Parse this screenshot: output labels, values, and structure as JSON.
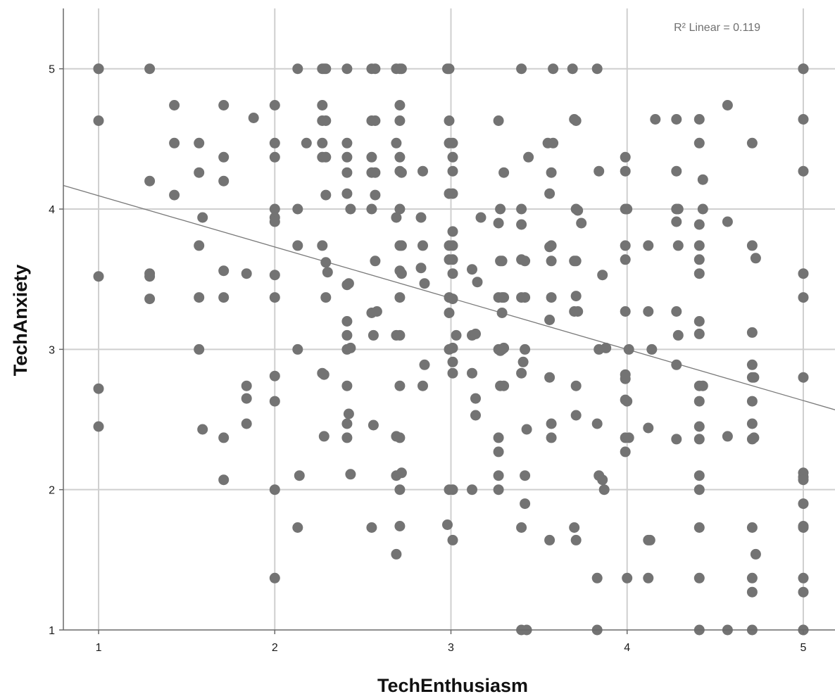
{
  "chart_data": {
    "type": "scatter",
    "xlabel": "TechEnthusiasm",
    "ylabel": "TechAnxiety",
    "xlim": [
      0.8,
      5.18
    ],
    "ylim": [
      1,
      5.43
    ],
    "xticks": [
      1,
      2,
      3,
      4,
      5
    ],
    "yticks": [
      1,
      2,
      3,
      4,
      5
    ],
    "grid": true,
    "annotation": "R² Linear = 0.119",
    "fit_line": {
      "intercept": 4.46,
      "slope": -0.365
    },
    "colors": {
      "points": "#737373",
      "grid": "#cfcfcf",
      "fit_line": "#7a7a7a",
      "axis": "#6a6a6a"
    },
    "points": [
      [
        1,
        5
      ],
      [
        1,
        5
      ],
      [
        1,
        4.63
      ],
      [
        1,
        3.52
      ],
      [
        1,
        2.72
      ],
      [
        1,
        2.45
      ],
      [
        1.29,
        5
      ],
      [
        1.29,
        4.2
      ],
      [
        1.29,
        3.54
      ],
      [
        1.29,
        3.52
      ],
      [
        1.29,
        3.36
      ],
      [
        1.43,
        4.74
      ],
      [
        1.43,
        4.47
      ],
      [
        1.43,
        4.1
      ],
      [
        1.57,
        4.47
      ],
      [
        1.57,
        4.26
      ],
      [
        1.57,
        3.74
      ],
      [
        1.57,
        3.37
      ],
      [
        1.57,
        3
      ],
      [
        1.59,
        3.94
      ],
      [
        1.59,
        2.43
      ],
      [
        1.71,
        4.74
      ],
      [
        1.71,
        4.37
      ],
      [
        1.71,
        4.2
      ],
      [
        1.71,
        3.56
      ],
      [
        1.71,
        3.37
      ],
      [
        1.71,
        2.37
      ],
      [
        1.71,
        2.07
      ],
      [
        1.84,
        3.54
      ],
      [
        1.84,
        2.74
      ],
      [
        1.84,
        2.65
      ],
      [
        1.84,
        2.47
      ],
      [
        1.88,
        4.65
      ],
      [
        2,
        4.74
      ],
      [
        2,
        4.47
      ],
      [
        2,
        4.37
      ],
      [
        2,
        4
      ],
      [
        2,
        3.94
      ],
      [
        2,
        3.91
      ],
      [
        2,
        3.53
      ],
      [
        2,
        3.37
      ],
      [
        2,
        2.81
      ],
      [
        2,
        2.63
      ],
      [
        2,
        2
      ],
      [
        2,
        1.37
      ],
      [
        2.13,
        5
      ],
      [
        2.13,
        4
      ],
      [
        2.13,
        3.74
      ],
      [
        2.13,
        3
      ],
      [
        2.14,
        2.1
      ],
      [
        2.13,
        1.73
      ],
      [
        2.18,
        4.47
      ],
      [
        2.27,
        5
      ],
      [
        2.28,
        5
      ],
      [
        2.29,
        5
      ],
      [
        2.27,
        4.74
      ],
      [
        2.27,
        4.63
      ],
      [
        2.29,
        4.63
      ],
      [
        2.27,
        4.47
      ],
      [
        2.27,
        4.37
      ],
      [
        2.29,
        4.37
      ],
      [
        2.29,
        4.1
      ],
      [
        2.27,
        3.74
      ],
      [
        2.29,
        3.62
      ],
      [
        2.3,
        3.55
      ],
      [
        2.29,
        3.37
      ],
      [
        2.27,
        2.83
      ],
      [
        2.28,
        2.82
      ],
      [
        2.28,
        2.38
      ],
      [
        2.41,
        5
      ],
      [
        2.41,
        4.47
      ],
      [
        2.41,
        4.37
      ],
      [
        2.41,
        4.26
      ],
      [
        2.41,
        4.11
      ],
      [
        2.43,
        4
      ],
      [
        2.42,
        3.47
      ],
      [
        2.41,
        3.46
      ],
      [
        2.41,
        3.2
      ],
      [
        2.41,
        3.1
      ],
      [
        2.41,
        3
      ],
      [
        2.43,
        3.01
      ],
      [
        2.41,
        2.74
      ],
      [
        2.42,
        2.54
      ],
      [
        2.41,
        2.47
      ],
      [
        2.41,
        2.37
      ],
      [
        2.43,
        2.11
      ],
      [
        2.55,
        5
      ],
      [
        2.57,
        5
      ],
      [
        2.55,
        4.63
      ],
      [
        2.57,
        4.63
      ],
      [
        2.55,
        4.37
      ],
      [
        2.55,
        4.26
      ],
      [
        2.57,
        4.26
      ],
      [
        2.57,
        4.1
      ],
      [
        2.55,
        4
      ],
      [
        2.57,
        3.63
      ],
      [
        2.55,
        3.26
      ],
      [
        2.58,
        3.27
      ],
      [
        2.56,
        3.1
      ],
      [
        2.56,
        2.46
      ],
      [
        2.55,
        1.73
      ],
      [
        2.69,
        5
      ],
      [
        2.71,
        5
      ],
      [
        2.72,
        5
      ],
      [
        2.71,
        4.74
      ],
      [
        2.71,
        4.63
      ],
      [
        2.69,
        4.47
      ],
      [
        2.71,
        4.37
      ],
      [
        2.71,
        4.27
      ],
      [
        2.72,
        4.26
      ],
      [
        2.71,
        4
      ],
      [
        2.69,
        3.94
      ],
      [
        2.72,
        3.74
      ],
      [
        2.71,
        3.74
      ],
      [
        2.71,
        3.56
      ],
      [
        2.72,
        3.54
      ],
      [
        2.71,
        3.37
      ],
      [
        2.69,
        3.1
      ],
      [
        2.71,
        3.1
      ],
      [
        2.71,
        2.74
      ],
      [
        2.69,
        2.38
      ],
      [
        2.71,
        2.37
      ],
      [
        2.69,
        2.1
      ],
      [
        2.72,
        2.12
      ],
      [
        2.71,
        2
      ],
      [
        2.71,
        1.74
      ],
      [
        2.69,
        1.54
      ],
      [
        2.84,
        4.27
      ],
      [
        2.83,
        3.94
      ],
      [
        2.84,
        3.74
      ],
      [
        2.83,
        3.58
      ],
      [
        2.85,
        3.47
      ],
      [
        2.85,
        2.89
      ],
      [
        2.84,
        2.74
      ],
      [
        2.98,
        5
      ],
      [
        2.99,
        5
      ],
      [
        2.99,
        4.63
      ],
      [
        2.99,
        4.47
      ],
      [
        3.01,
        4.47
      ],
      [
        3.01,
        4.37
      ],
      [
        3.01,
        4.27
      ],
      [
        2.99,
        4.11
      ],
      [
        3.01,
        4.11
      ],
      [
        3.01,
        3.84
      ],
      [
        2.99,
        3.74
      ],
      [
        3.01,
        3.74
      ],
      [
        3.01,
        3.64
      ],
      [
        2.99,
        3.64
      ],
      [
        3.01,
        3.54
      ],
      [
        2.99,
        3.37
      ],
      [
        3.01,
        3.36
      ],
      [
        2.99,
        3.26
      ],
      [
        3.03,
        3.1
      ],
      [
        2.99,
        3
      ],
      [
        3.01,
        3.01
      ],
      [
        3.01,
        2.91
      ],
      [
        3.01,
        2.83
      ],
      [
        2.99,
        2
      ],
      [
        3.01,
        2
      ],
      [
        2.98,
        1.75
      ],
      [
        3.01,
        1.64
      ],
      [
        3.12,
        3.57
      ],
      [
        3.15,
        3.48
      ],
      [
        3.12,
        3.1
      ],
      [
        3.14,
        3.11
      ],
      [
        3.12,
        2.83
      ],
      [
        3.14,
        2.65
      ],
      [
        3.14,
        2.53
      ],
      [
        3.12,
        2
      ],
      [
        3.17,
        3.94
      ],
      [
        3.27,
        4.63
      ],
      [
        3.3,
        4.26
      ],
      [
        3.28,
        4
      ],
      [
        3.27,
        3.9
      ],
      [
        3.28,
        3.63
      ],
      [
        3.29,
        3.63
      ],
      [
        3.27,
        3.37
      ],
      [
        3.29,
        3.37
      ],
      [
        3.3,
        3.37
      ],
      [
        3.29,
        3.26
      ],
      [
        3.27,
        3
      ],
      [
        3.28,
        2.99
      ],
      [
        3.3,
        3.01
      ],
      [
        3.29,
        3
      ],
      [
        3.28,
        2.74
      ],
      [
        3.3,
        2.74
      ],
      [
        3.27,
        2.37
      ],
      [
        3.27,
        2.27
      ],
      [
        3.27,
        2.1
      ],
      [
        3.27,
        2
      ],
      [
        3.4,
        5
      ],
      [
        3.4,
        4
      ],
      [
        3.4,
        3.89
      ],
      [
        3.4,
        3.64
      ],
      [
        3.42,
        3.63
      ],
      [
        3.4,
        3.37
      ],
      [
        3.42,
        3.37
      ],
      [
        3.42,
        3
      ],
      [
        3.41,
        2.91
      ],
      [
        3.4,
        2.83
      ],
      [
        3.42,
        2.1
      ],
      [
        3.42,
        1.9
      ],
      [
        3.4,
        1.73
      ],
      [
        3.4,
        1
      ],
      [
        3.43,
        1
      ],
      [
        3.44,
        4.37
      ],
      [
        3.43,
        2.43
      ],
      [
        3.55,
        4.47
      ],
      [
        3.58,
        4.47
      ],
      [
        3.57,
        4.26
      ],
      [
        3.56,
        4.11
      ],
      [
        3.57,
        3.74
      ],
      [
        3.56,
        3.73
      ],
      [
        3.57,
        3.63
      ],
      [
        3.57,
        3.37
      ],
      [
        3.56,
        3.21
      ],
      [
        3.56,
        2.8
      ],
      [
        3.57,
        2.47
      ],
      [
        3.57,
        2.37
      ],
      [
        3.56,
        1.64
      ],
      [
        3.58,
        5
      ],
      [
        3.69,
        5
      ],
      [
        3.7,
        4.64
      ],
      [
        3.71,
        4.63
      ],
      [
        3.71,
        4
      ],
      [
        3.72,
        3.99
      ],
      [
        3.74,
        3.9
      ],
      [
        3.7,
        3.63
      ],
      [
        3.71,
        3.63
      ],
      [
        3.71,
        3.38
      ],
      [
        3.7,
        3.27
      ],
      [
        3.72,
        3.27
      ],
      [
        3.71,
        2.74
      ],
      [
        3.71,
        2.53
      ],
      [
        3.7,
        1.73
      ],
      [
        3.71,
        1.64
      ],
      [
        3.83,
        5
      ],
      [
        3.84,
        4.27
      ],
      [
        3.86,
        3.53
      ],
      [
        3.84,
        3
      ],
      [
        3.88,
        3.01
      ],
      [
        3.83,
        2.47
      ],
      [
        3.84,
        2.1
      ],
      [
        3.86,
        2.07
      ],
      [
        3.87,
        2
      ],
      [
        3.83,
        1.37
      ],
      [
        3.83,
        1
      ],
      [
        3.99,
        4.37
      ],
      [
        3.99,
        4.27
      ],
      [
        3.99,
        4
      ],
      [
        4,
        4
      ],
      [
        3.99,
        3.74
      ],
      [
        3.99,
        3.64
      ],
      [
        3.99,
        3.27
      ],
      [
        4.01,
        3
      ],
      [
        3.99,
        2.82
      ],
      [
        3.99,
        2.79
      ],
      [
        3.99,
        2.64
      ],
      [
        4,
        2.63
      ],
      [
        3.99,
        2.37
      ],
      [
        4.01,
        2.37
      ],
      [
        3.99,
        2.27
      ],
      [
        4,
        1.37
      ],
      [
        4.12,
        3.74
      ],
      [
        4.12,
        3.27
      ],
      [
        4.14,
        3
      ],
      [
        4.12,
        2.44
      ],
      [
        4.12,
        1.64
      ],
      [
        4.13,
        1.64
      ],
      [
        4.12,
        1.37
      ],
      [
        4.16,
        4.64
      ],
      [
        4.28,
        4.64
      ],
      [
        4.28,
        4.27
      ],
      [
        4.28,
        4
      ],
      [
        4.29,
        4
      ],
      [
        4.28,
        3.91
      ],
      [
        4.29,
        3.74
      ],
      [
        4.28,
        3.27
      ],
      [
        4.29,
        3.1
      ],
      [
        4.28,
        2.89
      ],
      [
        4.28,
        2.36
      ],
      [
        4.41,
        4.64
      ],
      [
        4.41,
        4.47
      ],
      [
        4.43,
        4.21
      ],
      [
        4.43,
        4
      ],
      [
        4.41,
        3.89
      ],
      [
        4.41,
        3.74
      ],
      [
        4.41,
        3.64
      ],
      [
        4.41,
        3.54
      ],
      [
        4.41,
        3.2
      ],
      [
        4.41,
        3.11
      ],
      [
        4.41,
        2.74
      ],
      [
        4.43,
        2.74
      ],
      [
        4.41,
        2.63
      ],
      [
        4.41,
        2.45
      ],
      [
        4.41,
        2.36
      ],
      [
        4.41,
        2.1
      ],
      [
        4.41,
        2
      ],
      [
        4.41,
        1.73
      ],
      [
        4.41,
        1.37
      ],
      [
        4.41,
        1
      ],
      [
        4.57,
        4.74
      ],
      [
        4.57,
        3.91
      ],
      [
        4.57,
        2.38
      ],
      [
        4.57,
        1
      ],
      [
        4.71,
        4.47
      ],
      [
        4.71,
        3.74
      ],
      [
        4.73,
        3.65
      ],
      [
        4.71,
        3.12
      ],
      [
        4.71,
        2.89
      ],
      [
        4.71,
        2.8
      ],
      [
        4.72,
        2.8
      ],
      [
        4.71,
        2.63
      ],
      [
        4.71,
        2.47
      ],
      [
        4.71,
        2.36
      ],
      [
        4.72,
        2.37
      ],
      [
        4.71,
        1.73
      ],
      [
        4.73,
        1.54
      ],
      [
        4.71,
        1.37
      ],
      [
        4.71,
        1.27
      ],
      [
        4.71,
        1
      ],
      [
        5,
        5
      ],
      [
        5,
        5
      ],
      [
        5,
        4.64
      ],
      [
        5,
        4.27
      ],
      [
        5,
        3.54
      ],
      [
        5,
        3.37
      ],
      [
        5,
        2.8
      ],
      [
        5,
        2.12
      ],
      [
        5,
        2.09
      ],
      [
        5,
        2.07
      ],
      [
        5,
        1.9
      ],
      [
        5,
        1.74
      ],
      [
        5,
        1.73
      ],
      [
        5,
        1.37
      ],
      [
        5,
        1.27
      ],
      [
        5,
        1
      ],
      [
        5,
        1
      ]
    ]
  }
}
